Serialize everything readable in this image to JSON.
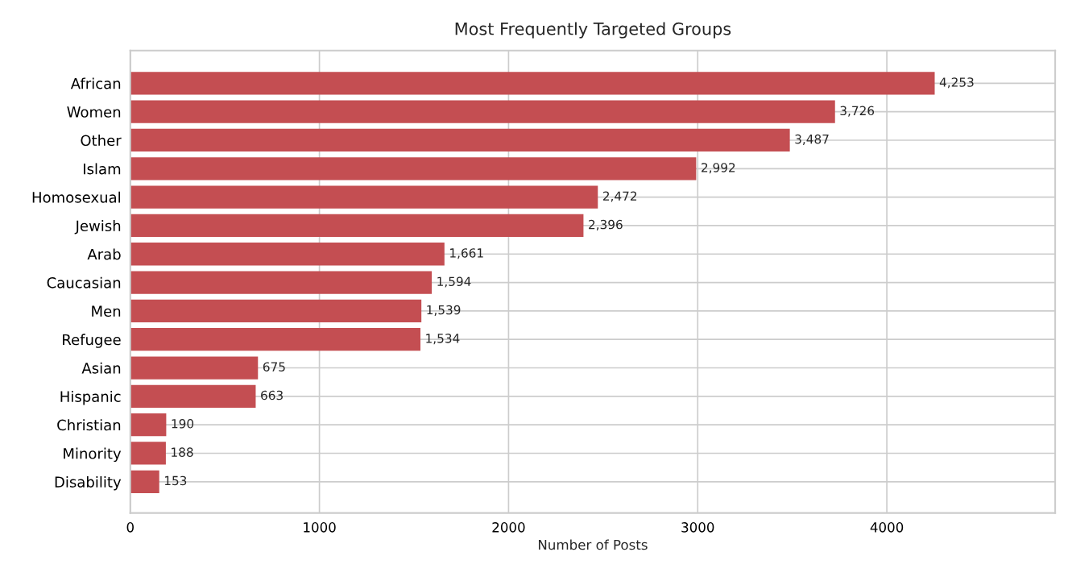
{
  "chart_data": {
    "type": "bar",
    "orientation": "horizontal",
    "title": "Most Frequently Targeted Groups",
    "xlabel": "Number of Posts",
    "categories": [
      "African",
      "Women",
      "Other",
      "Islam",
      "Homosexual",
      "Jewish",
      "Arab",
      "Caucasian",
      "Men",
      "Refugee",
      "Asian",
      "Hispanic",
      "Christian",
      "Minority",
      "Disability"
    ],
    "values": [
      4253,
      3726,
      3487,
      2992,
      2472,
      2396,
      1661,
      1594,
      1539,
      1534,
      675,
      663,
      190,
      188,
      153
    ],
    "value_labels": [
      "4,253",
      "3,726",
      "3,487",
      "2,992",
      "2,472",
      "2,396",
      "1,661",
      "1,594",
      "1,539",
      "1,534",
      "675",
      "663",
      "190",
      "188",
      "153"
    ],
    "color": "#c44e52",
    "xlim": [
      0,
      4890
    ],
    "xticks": [
      0,
      1000,
      2000,
      3000,
      4000
    ],
    "grid": true
  }
}
